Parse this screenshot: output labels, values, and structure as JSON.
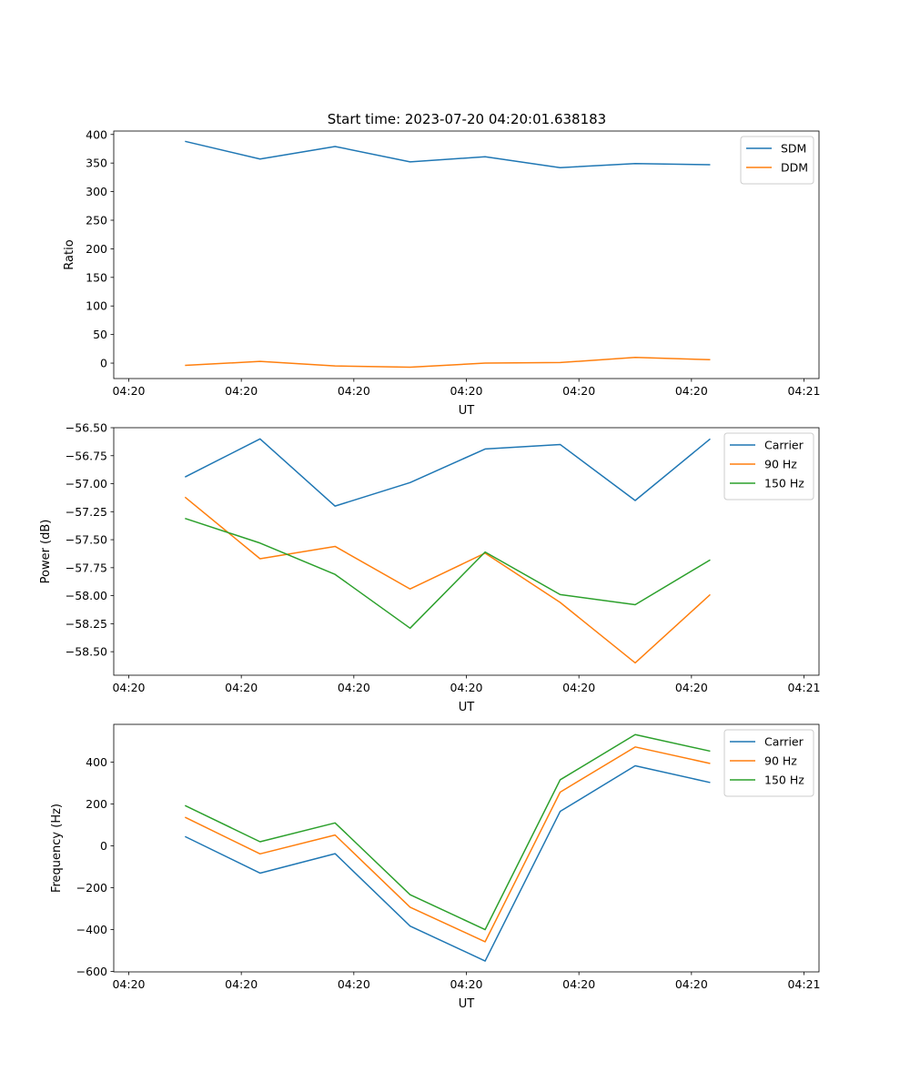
{
  "figure_title": "Start time: 2023-07-20 04:20:01.638183",
  "colors": {
    "blue": "#1f77b4",
    "orange": "#ff7f0e",
    "green": "#2ca02c"
  },
  "chart_data": [
    {
      "type": "line",
      "title": "Start time: 2023-07-20 04:20:01.638183",
      "xlabel": "UT",
      "ylabel": "Ratio",
      "x": [
        0.75,
        1.75,
        2.75,
        3.75,
        4.75,
        5.75,
        6.75,
        7.75
      ],
      "xlim": [
        -0.2,
        9.2
      ],
      "xticks": [
        0,
        1.5,
        3,
        4.5,
        6,
        7.5,
        9
      ],
      "xtick_labels": [
        "04:20",
        "04:20",
        "04:20",
        "04:20",
        "04:20",
        "04:20",
        "04:21"
      ],
      "ylim": [
        -27,
        406
      ],
      "yticks": [
        0,
        50,
        100,
        150,
        200,
        250,
        300,
        350,
        400
      ],
      "ytick_labels": [
        "0",
        "50",
        "100",
        "150",
        "200",
        "250",
        "300",
        "350",
        "400"
      ],
      "legend_position": "top-right",
      "series": [
        {
          "name": "SDM",
          "color": "#1f77b4",
          "values": [
            388,
            357,
            379,
            352,
            361,
            342,
            349,
            347
          ]
        },
        {
          "name": "DDM",
          "color": "#ff7f0e",
          "values": [
            -4,
            3,
            -5,
            -7,
            0,
            1,
            10,
            6
          ]
        }
      ]
    },
    {
      "type": "line",
      "title": "",
      "xlabel": "UT",
      "ylabel": "Power (dB)",
      "x": [
        0.75,
        1.75,
        2.75,
        3.75,
        4.75,
        5.75,
        6.75,
        7.75
      ],
      "xlim": [
        -0.2,
        9.2
      ],
      "xticks": [
        0,
        1.5,
        3,
        4.5,
        6,
        7.5,
        9
      ],
      "xtick_labels": [
        "04:20",
        "04:20",
        "04:20",
        "04:20",
        "04:20",
        "04:20",
        "04:21"
      ],
      "ylim": [
        -58.71,
        -56.5
      ],
      "yticks": [
        -56.5,
        -56.75,
        -57,
        -57.25,
        -57.5,
        -57.75,
        -58,
        -58.25,
        -58.5
      ],
      "ytick_labels": [
        "−56.50",
        "−56.75",
        "−57.00",
        "−57.25",
        "−57.50",
        "−57.75",
        "−58.00",
        "−58.25",
        "−58.50"
      ],
      "legend_position": "top-right",
      "series": [
        {
          "name": "Carrier",
          "color": "#1f77b4",
          "values": [
            -56.94,
            -56.6,
            -57.2,
            -56.99,
            -56.69,
            -56.65,
            -57.15,
            -56.6
          ]
        },
        {
          "name": "90 Hz",
          "color": "#ff7f0e",
          "values": [
            -57.12,
            -57.67,
            -57.56,
            -57.94,
            -57.62,
            -58.06,
            -58.6,
            -57.99
          ]
        },
        {
          "name": "150 Hz",
          "color": "#2ca02c",
          "values": [
            -57.31,
            -57.53,
            -57.81,
            -58.29,
            -57.61,
            -57.99,
            -58.08,
            -57.68
          ]
        }
      ]
    },
    {
      "type": "line",
      "title": "",
      "xlabel": "UT",
      "ylabel": "Frequency (Hz)",
      "x": [
        0.75,
        1.75,
        2.75,
        3.75,
        4.75,
        5.75,
        6.75,
        7.75
      ],
      "xlim": [
        -0.2,
        9.2
      ],
      "xticks": [
        0,
        1.5,
        3,
        4.5,
        6,
        7.5,
        9
      ],
      "xtick_labels": [
        "04:20",
        "04:20",
        "04:20",
        "04:20",
        "04:20",
        "04:20",
        "04:21"
      ],
      "ylim": [
        -602,
        581
      ],
      "yticks": [
        -600,
        -400,
        -200,
        0,
        200,
        400
      ],
      "ytick_labels": [
        "−600",
        "−400",
        "−200",
        "0",
        "200",
        "400"
      ],
      "legend_position": "top-right",
      "series": [
        {
          "name": "Carrier",
          "color": "#1f77b4",
          "values": [
            45,
            -130,
            -37,
            -383,
            -550,
            165,
            383,
            303
          ]
        },
        {
          "name": "90 Hz",
          "color": "#ff7f0e",
          "values": [
            137,
            -38,
            52,
            -293,
            -458,
            257,
            473,
            394
          ]
        },
        {
          "name": "150 Hz",
          "color": "#2ca02c",
          "values": [
            193,
            20,
            110,
            -233,
            -400,
            316,
            532,
            453
          ]
        }
      ]
    }
  ]
}
